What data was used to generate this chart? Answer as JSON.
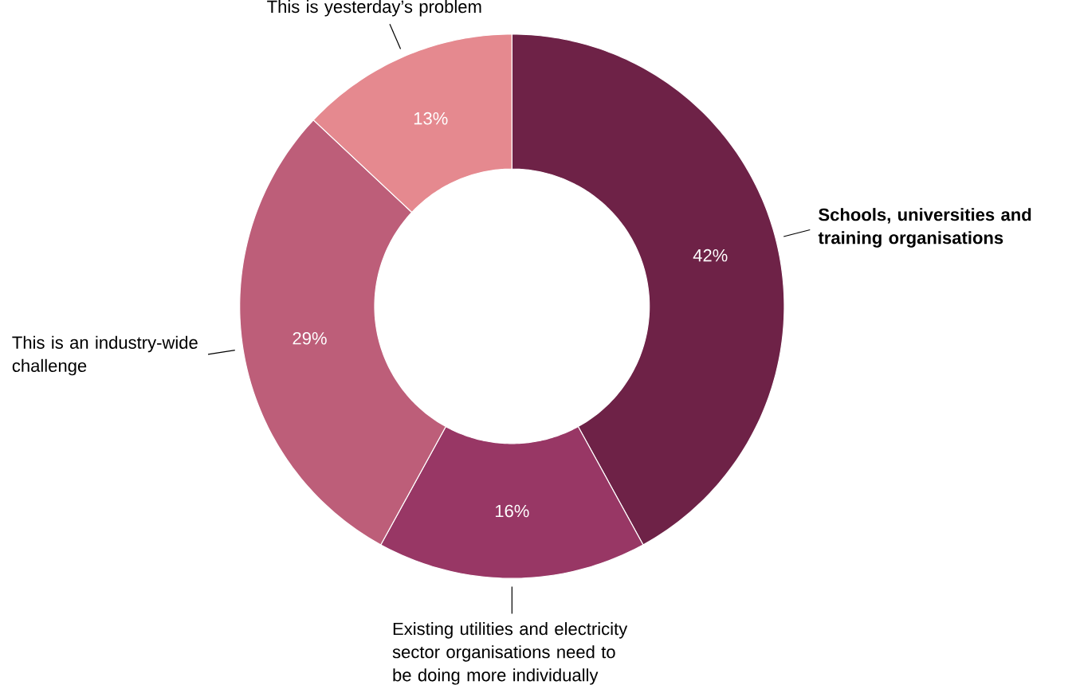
{
  "chart_data": {
    "type": "donut",
    "categories": [
      "**Schools, universities and training organisations**",
      "Existing utilities and electricity sector organisations need to be doing more individually",
      "This is an industry-wide challenge",
      "This is yesterday’s problem"
    ],
    "values": [
      42,
      16,
      29,
      13
    ],
    "value_labels": [
      "42%",
      "16%",
      "29%",
      "13%"
    ],
    "colors": [
      "#6e2247",
      "#983765",
      "#bd5e79",
      "#e5898f"
    ]
  }
}
